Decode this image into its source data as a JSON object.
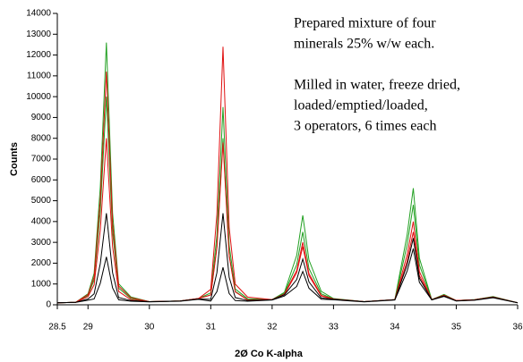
{
  "chart_data": {
    "type": "line",
    "x_label": "2Ø Co K-alpha",
    "y_label": "Counts",
    "annotation": [
      "Prepared mixture of four",
      "minerals 25% w/w each.",
      "Milled in water, freeze dried,",
      "loaded/emptied/loaded,",
      "3 operators, 6 times each"
    ],
    "x": [
      28.5,
      28.8,
      29.0,
      29.1,
      29.2,
      29.3,
      29.4,
      29.5,
      29.7,
      30.0,
      30.5,
      30.8,
      31.0,
      31.1,
      31.2,
      31.3,
      31.4,
      31.6,
      32.0,
      32.2,
      32.4,
      32.5,
      32.6,
      32.8,
      33.0,
      33.5,
      34.0,
      34.2,
      34.3,
      34.4,
      34.6,
      34.8,
      35.0,
      35.3,
      35.6,
      36.0
    ],
    "series": [
      {
        "color": "#22a022",
        "values": [
          100,
          120,
          530,
          1510,
          5670,
          12600,
          4410,
          1010,
          380,
          150,
          180,
          300,
          570,
          3330,
          9500,
          2850,
          760,
          290,
          250,
          600,
          2370,
          4300,
          2150,
          650,
          300,
          150,
          250,
          3360,
          5600,
          2240,
          250,
          500,
          200,
          250,
          400,
          100
        ]
      },
      {
        "color": "#22a022",
        "values": [
          100,
          120,
          450,
          1200,
          4500,
          10000,
          3500,
          800,
          300,
          150,
          180,
          300,
          480,
          2800,
          8000,
          2400,
          640,
          240,
          250,
          550,
          1930,
          3500,
          1750,
          530,
          280,
          150,
          250,
          2880,
          4800,
          1920,
          250,
          480,
          200,
          250,
          380,
          100
        ]
      },
      {
        "color": "#e01010",
        "values": [
          100,
          120,
          490,
          1340,
          5040,
          11200,
          3920,
          900,
          340,
          150,
          180,
          300,
          740,
          4340,
          12400,
          3720,
          990,
          370,
          250,
          520,
          1650,
          3000,
          1500,
          450,
          280,
          150,
          250,
          2400,
          4000,
          1600,
          250,
          460,
          200,
          240,
          380,
          100
        ]
      },
      {
        "color": "#e01010",
        "values": [
          100,
          120,
          390,
          960,
          3600,
          8000,
          2800,
          640,
          240,
          150,
          180,
          300,
          470,
          2730,
          7800,
          2340,
          620,
          230,
          250,
          500,
          1540,
          2800,
          1400,
          420,
          270,
          150,
          250,
          2100,
          3500,
          1400,
          240,
          450,
          200,
          240,
          370,
          100
        ]
      },
      {
        "color": "#000000",
        "values": [
          100,
          120,
          280,
          530,
          1980,
          4400,
          1540,
          350,
          200,
          150,
          180,
          280,
          260,
          1540,
          4400,
          1320,
          350,
          200,
          240,
          480,
          1210,
          2200,
          1100,
          330,
          260,
          150,
          240,
          1920,
          3200,
          1280,
          240,
          430,
          190,
          230,
          360,
          100
        ]
      },
      {
        "color": "#000000",
        "values": [
          100,
          120,
          220,
          280,
          1040,
          2300,
          810,
          240,
          170,
          140,
          170,
          260,
          180,
          630,
          1800,
          540,
          200,
          170,
          230,
          420,
          880,
          1600,
          800,
          270,
          240,
          140,
          230,
          1620,
          2700,
          1080,
          230,
          400,
          180,
          220,
          340,
          100
        ]
      }
    ],
    "xlim": [
      28.5,
      36
    ],
    "ylim": [
      0,
      14000
    ],
    "xticks": [
      28.5,
      29,
      30,
      31,
      32,
      33,
      34,
      35,
      36
    ],
    "yticks": [
      0,
      1000,
      2000,
      3000,
      4000,
      5000,
      6000,
      7000,
      8000,
      9000,
      10000,
      11000,
      12000,
      13000,
      14000
    ]
  }
}
